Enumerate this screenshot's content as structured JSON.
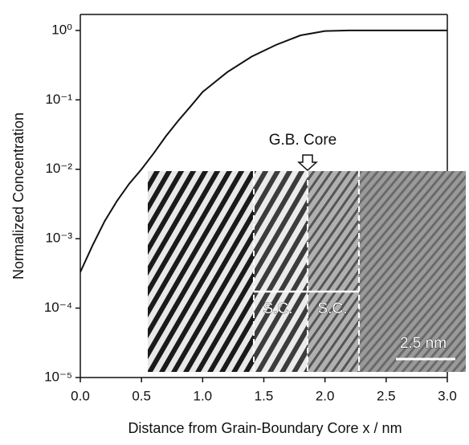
{
  "chart_data": {
    "type": "line",
    "xlabel": "Distance from Grain-Boundary Core x / nm",
    "ylabel": "Normalized Concentration",
    "x": [
      0,
      0.1,
      0.2,
      0.3,
      0.4,
      0.5,
      0.6,
      0.7,
      0.8,
      0.9,
      1.0,
      1.2,
      1.4,
      1.6,
      1.8,
      2.0,
      2.2,
      2.5,
      3.0
    ],
    "series": [
      {
        "color": "#111111",
        "values": [
          0.00033,
          0.0008,
          0.0018,
          0.0035,
          0.0062,
          0.01,
          0.017,
          0.03,
          0.05,
          0.08,
          0.13,
          0.25,
          0.42,
          0.62,
          0.85,
          0.98,
          1.0,
          1.0,
          1.0
        ]
      }
    ],
    "xlim": [
      0,
      3
    ],
    "xticks": [
      {
        "value": 0,
        "label": "0.0"
      },
      {
        "value": 0.5,
        "label": "0.5"
      },
      {
        "value": 1,
        "label": "1.0"
      },
      {
        "value": 1.5,
        "label": "1.5"
      },
      {
        "value": 2,
        "label": "2.0"
      },
      {
        "value": 2.5,
        "label": "2.5"
      },
      {
        "value": 3,
        "label": "3.0"
      }
    ],
    "ylim": [
      1e-05,
      1.7
    ],
    "yscale": "log",
    "yticks": [
      {
        "value": 1e-05,
        "label": "10⁻⁵"
      },
      {
        "value": 0.0001,
        "label": "10⁻⁴"
      },
      {
        "value": 0.001,
        "label": "10⁻³"
      },
      {
        "value": 0.01,
        "label": "10⁻²"
      },
      {
        "value": 0.1,
        "label": "10⁻¹"
      },
      {
        "value": 1,
        "label": "10⁰"
      }
    ],
    "grid": false,
    "annotations": {
      "gb_core": "G.B. Core",
      "sc_left": "S.C.",
      "sc_right": "S.C.",
      "scale_bar": "2.5 nm"
    }
  }
}
